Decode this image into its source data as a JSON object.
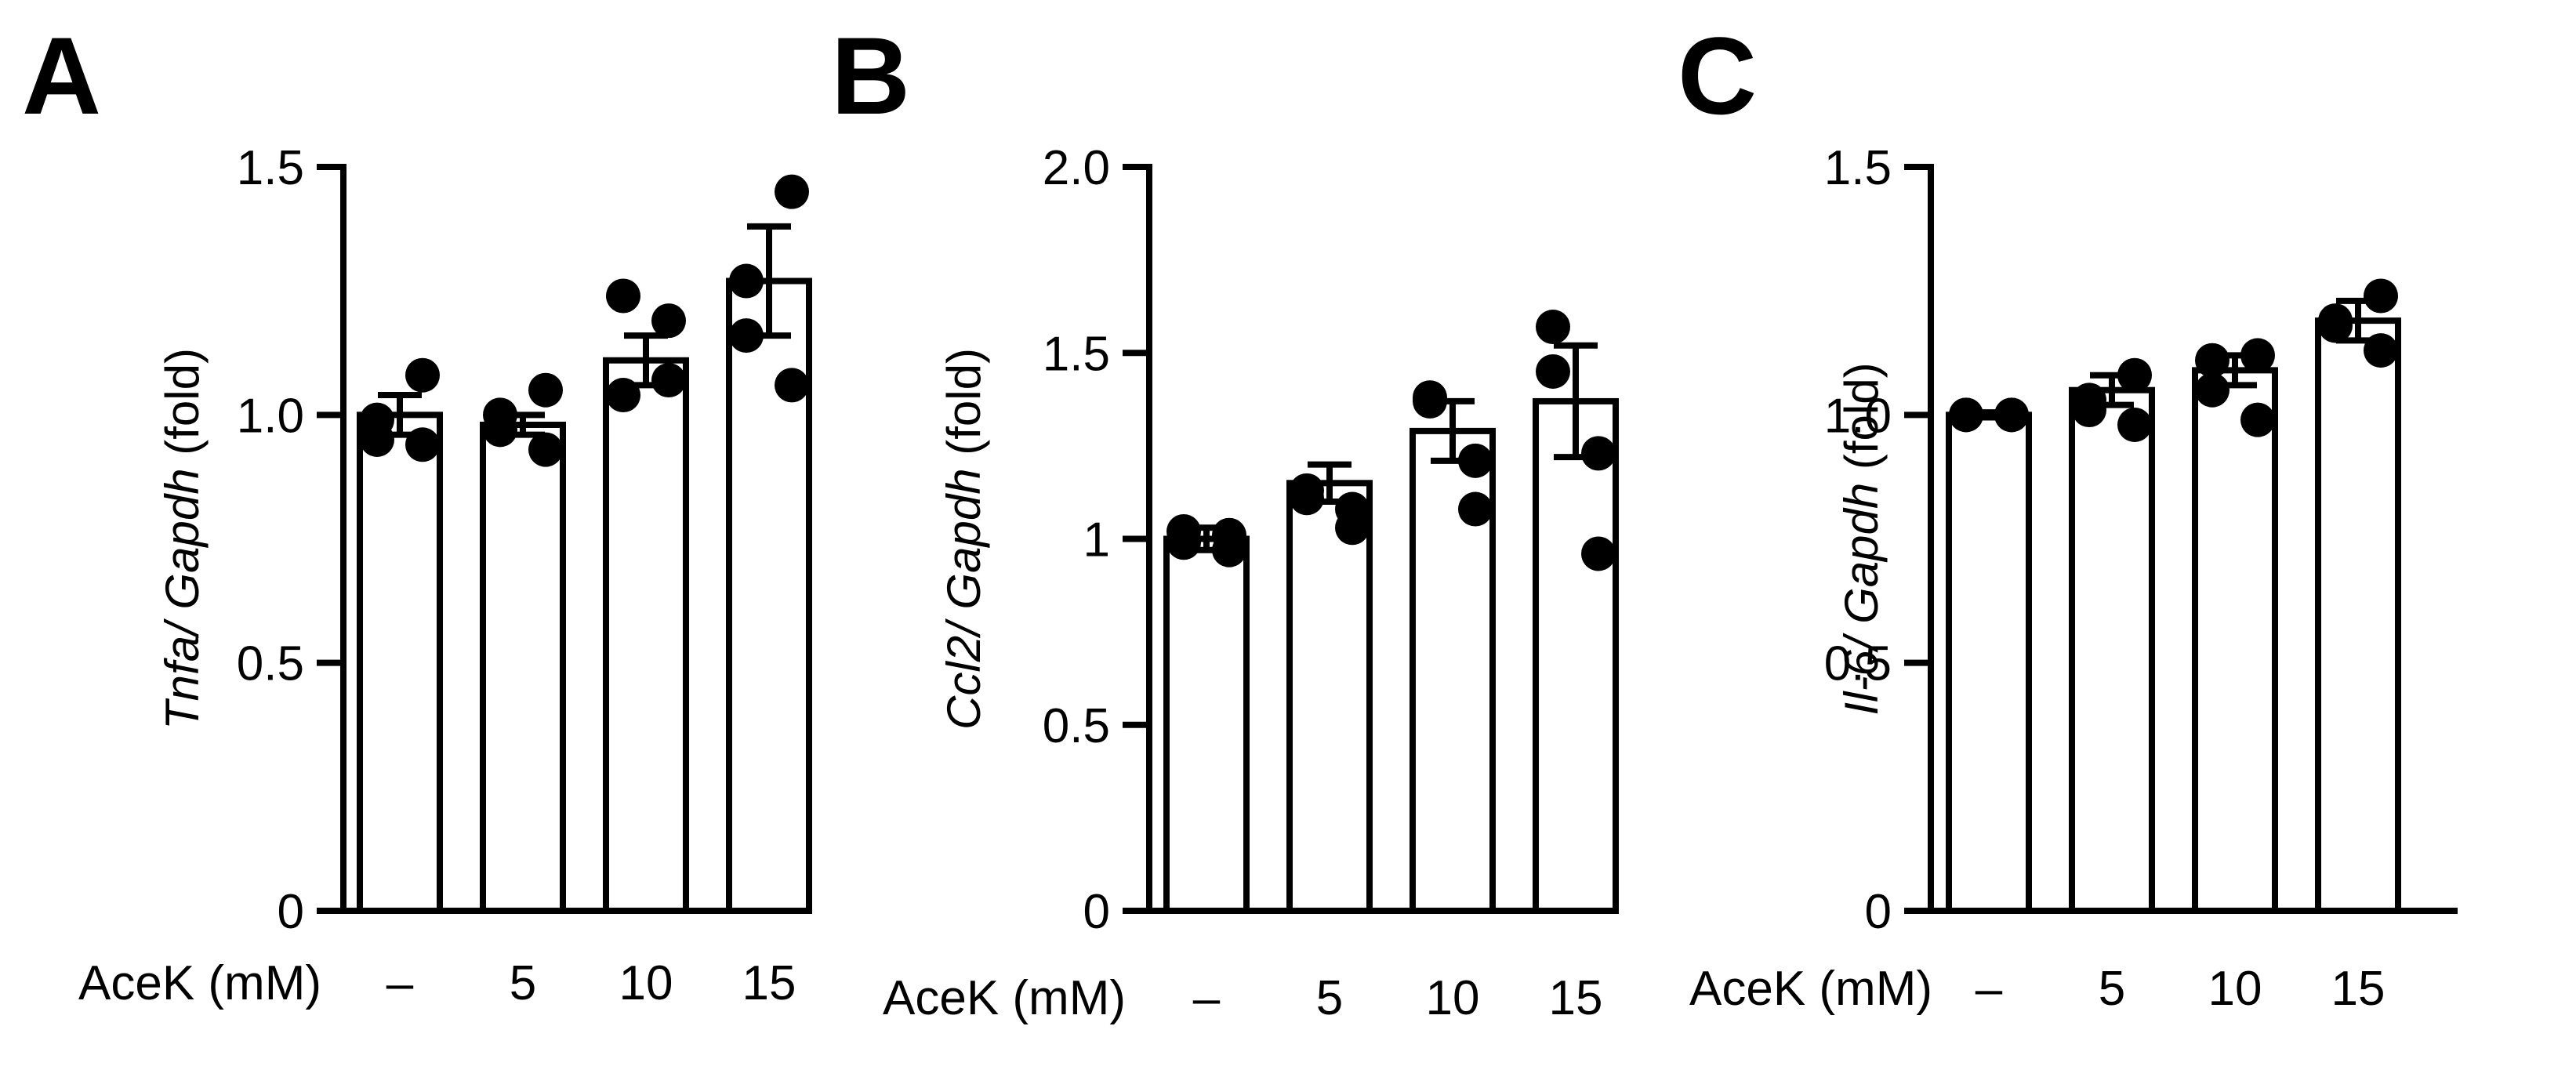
{
  "chart_data": [
    {
      "type": "bar",
      "panel_letter": "A",
      "ylabel_gene": "Tnfa/ Gapdh",
      "ylabel_unit": " (fold)",
      "xlabel": "AceK (mM)",
      "categories": [
        "–",
        "5",
        "10",
        "15"
      ],
      "ylim": [
        0,
        1.5
      ],
      "yticks": [
        0,
        0.5,
        1.0,
        1.5
      ],
      "ytick_labels": [
        "0",
        "0.5",
        "1.0",
        "1.5"
      ],
      "values": [
        1.0,
        0.98,
        1.11,
        1.27
      ],
      "errors": [
        0.04,
        0.02,
        0.05,
        0.11
      ],
      "points": [
        [
          0.99,
          1.08,
          0.95,
          0.94
        ],
        [
          0.97,
          1.05,
          1.0,
          0.93
        ],
        [
          1.04,
          1.19,
          1.24,
          1.07
        ],
        [
          1.27,
          1.45,
          1.16,
          1.06
        ]
      ]
    },
    {
      "type": "bar",
      "panel_letter": "B",
      "ylabel_gene": "Ccl2/ Gapdh",
      "ylabel_unit": " (fold)",
      "xlabel": "AceK (mM)",
      "categories": [
        "–",
        "5",
        "10",
        "15"
      ],
      "ylim": [
        0,
        2.0
      ],
      "yticks": [
        0,
        0.5,
        1.0,
        1.5,
        2.0
      ],
      "ytick_labels": [
        "0",
        "0.5",
        "1",
        "1.5",
        "2.0"
      ],
      "values": [
        1.0,
        1.15,
        1.29,
        1.37
      ],
      "errors": [
        0.03,
        0.05,
        0.08,
        0.15
      ],
      "points": [
        [
          1.02,
          1.01,
          0.99,
          0.97
        ],
        [
          1.13,
          1.08,
          1.11,
          1.03
        ],
        [
          1.37,
          1.21,
          1.38,
          1.08
        ],
        [
          1.57,
          1.23,
          1.45,
          0.96
        ]
      ]
    },
    {
      "type": "bar",
      "panel_letter": "C",
      "ylabel_gene": "Il-6/ Gapdh",
      "ylabel_unit": " (fold)",
      "xlabel": "AceK (mM)",
      "categories": [
        "–",
        "5",
        "10",
        "15"
      ],
      "ylim": [
        0,
        1.5
      ],
      "yticks": [
        0,
        0.5,
        1.0,
        1.5
      ],
      "ytick_labels": [
        "0",
        "0.5",
        "1.0",
        "1.5"
      ],
      "values": [
        1.0,
        1.05,
        1.09,
        1.19
      ],
      "errors": [
        0.005,
        0.03,
        0.03,
        0.04
      ],
      "points": [
        [
          1.0,
          1.0,
          1.0,
          1.0
        ],
        [
          1.03,
          1.08,
          1.01,
          0.98
        ],
        [
          1.05,
          1.12,
          1.11,
          0.99
        ],
        [
          1.18,
          1.24,
          1.19,
          1.13
        ]
      ]
    }
  ]
}
